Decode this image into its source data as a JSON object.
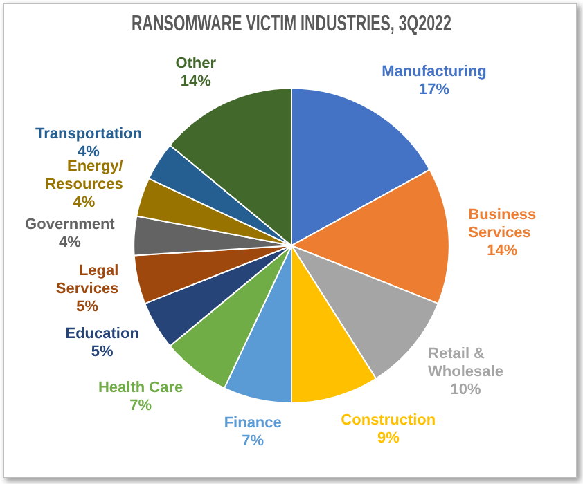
{
  "chart_data": {
    "type": "pie",
    "title": "RANSOMWARE VICTIM INDUSTRIES, 3Q2022",
    "categories": [
      "Manufacturing",
      "Business Services",
      "Retail & Wholesale",
      "Construction",
      "Finance",
      "Health Care",
      "Education",
      "Legal Services",
      "Government",
      "Energy/Resources",
      "Transportation",
      "Other"
    ],
    "values": [
      17,
      14,
      10,
      9,
      7,
      7,
      5,
      5,
      4,
      4,
      4,
      14
    ],
    "value_labels": [
      "17%",
      "14%",
      "10%",
      "9%",
      "7%",
      "7%",
      "5%",
      "5%",
      "4%",
      "4%",
      "4%",
      "14%"
    ],
    "colors": [
      "#4472c4",
      "#ed7d31",
      "#a5a5a5",
      "#ffc000",
      "#5b9bd5",
      "#70ad47",
      "#264478",
      "#9e480e",
      "#636363",
      "#997300",
      "#255e91",
      "#43682b"
    ],
    "legend": false
  }
}
